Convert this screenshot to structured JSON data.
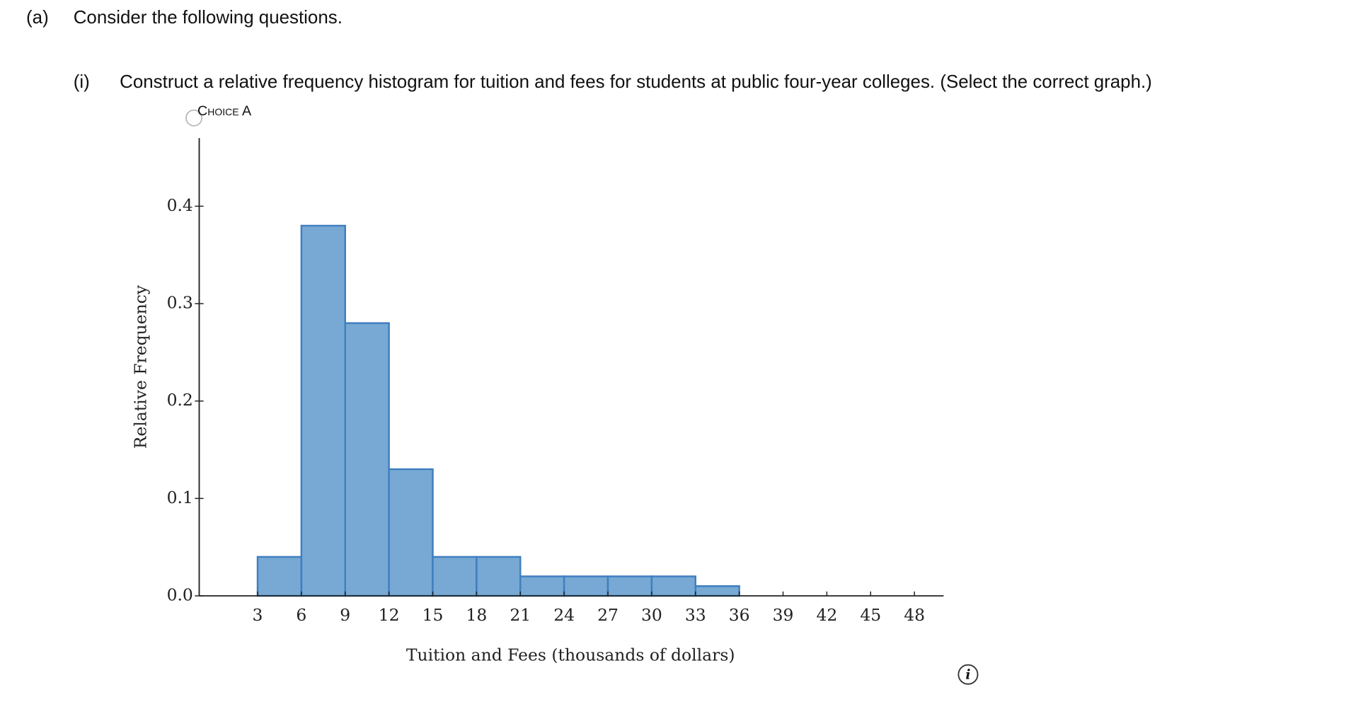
{
  "header": {
    "label": "(a)",
    "text": "Consider the following questions."
  },
  "part": {
    "label": "(i)",
    "text": "Construct a relative frequency histogram for tuition and fees for students at public four-year colleges. (Select the correct graph.)"
  },
  "choice": {
    "label": "Choice A"
  },
  "chart_data": {
    "type": "histogram",
    "xlabel": "Tuition and Fees (thousands of dollars)",
    "ylabel": "Relative Frequency",
    "bins": [
      3,
      6,
      9,
      12,
      15,
      18,
      21,
      24,
      27,
      30,
      33,
      36
    ],
    "values": [
      0.04,
      0.38,
      0.28,
      0.13,
      0.04,
      0.04,
      0.02,
      0.02,
      0.02,
      0.02,
      0.01
    ],
    "color": "#77a9d4",
    "edgecolor": "#3f7fbf",
    "xlim": [
      -1,
      50
    ],
    "ylim": [
      0,
      0.47
    ],
    "xticks": [
      3,
      6,
      9,
      12,
      15,
      18,
      21,
      24,
      27,
      30,
      33,
      36,
      39,
      42,
      45,
      48
    ],
    "yticks": [
      {
        "value": 0,
        "label": "0.0"
      },
      0.1,
      0.2,
      0.3,
      0.4
    ]
  }
}
